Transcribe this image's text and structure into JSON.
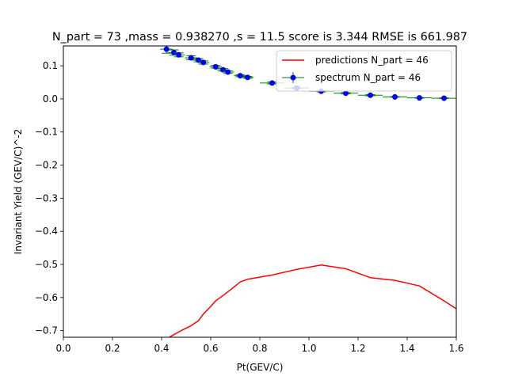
{
  "chart_data": {
    "type": "line",
    "title": "N_part = 73 ,mass = 0.938270 ,s = 11.5  score is  3.344  RMSE  is  661.987",
    "xlabel": "Pt(GEV/C)",
    "ylabel": "Invariant Yield (GEV/C)^-2",
    "xlim": [
      0.0,
      1.6
    ],
    "ylim": [
      -0.72,
      0.16
    ],
    "xticks": [
      "0.0",
      "0.2",
      "0.4",
      "0.6",
      "0.8",
      "1.0",
      "1.2",
      "1.4",
      "1.6"
    ],
    "yticks": [
      "−0.7",
      "−0.6",
      "−0.5",
      "−0.4",
      "−0.3",
      "−0.2",
      "−0.1",
      "0.0",
      "0.1"
    ],
    "legend_position": "top-right",
    "series": [
      {
        "name": "predictions N_part = 46",
        "kind": "line",
        "color": "#ff0000",
        "x": [
          0.4,
          0.42,
          0.45,
          0.48,
          0.52,
          0.55,
          0.57,
          0.6,
          0.62,
          0.65,
          0.68,
          0.72,
          0.75,
          0.85,
          0.95,
          1.05,
          1.15,
          1.25,
          1.35,
          1.45,
          1.55,
          1.6
        ],
        "y": [
          -0.74,
          -0.725,
          -0.712,
          -0.7,
          -0.685,
          -0.67,
          -0.65,
          -0.627,
          -0.61,
          -0.594,
          -0.577,
          -0.553,
          -0.545,
          -0.532,
          -0.515,
          -0.502,
          -0.513,
          -0.54,
          -0.548,
          -0.565,
          -0.61,
          -0.634
        ]
      },
      {
        "name": "spectrum N_part = 46",
        "kind": "errorbar",
        "marker_color": "#0000ff",
        "errorbar_color": "#008000",
        "x": [
          0.42,
          0.45,
          0.47,
          0.52,
          0.55,
          0.57,
          0.62,
          0.65,
          0.67,
          0.72,
          0.75,
          0.85,
          0.95,
          1.05,
          1.15,
          1.25,
          1.35,
          1.45,
          1.55
        ],
        "y": [
          0.15,
          0.14,
          0.133,
          0.124,
          0.117,
          0.11,
          0.097,
          0.088,
          0.081,
          0.07,
          0.065,
          0.048,
          0.033,
          0.023,
          0.017,
          0.011,
          0.006,
          0.003,
          0.002
        ],
        "xerr": [
          0.025,
          0.025,
          0.025,
          0.025,
          0.025,
          0.025,
          0.025,
          0.025,
          0.025,
          0.025,
          0.025,
          0.05,
          0.05,
          0.05,
          0.05,
          0.05,
          0.05,
          0.05,
          0.05
        ],
        "yerr": [
          0.012,
          0.008,
          0.006,
          0.006,
          0.005,
          0.005,
          0.004,
          0.004,
          0.004,
          0.003,
          0.003,
          0.003,
          0.002,
          0.002,
          0.002,
          0.002,
          0.001,
          0.001,
          0.001
        ]
      }
    ]
  }
}
